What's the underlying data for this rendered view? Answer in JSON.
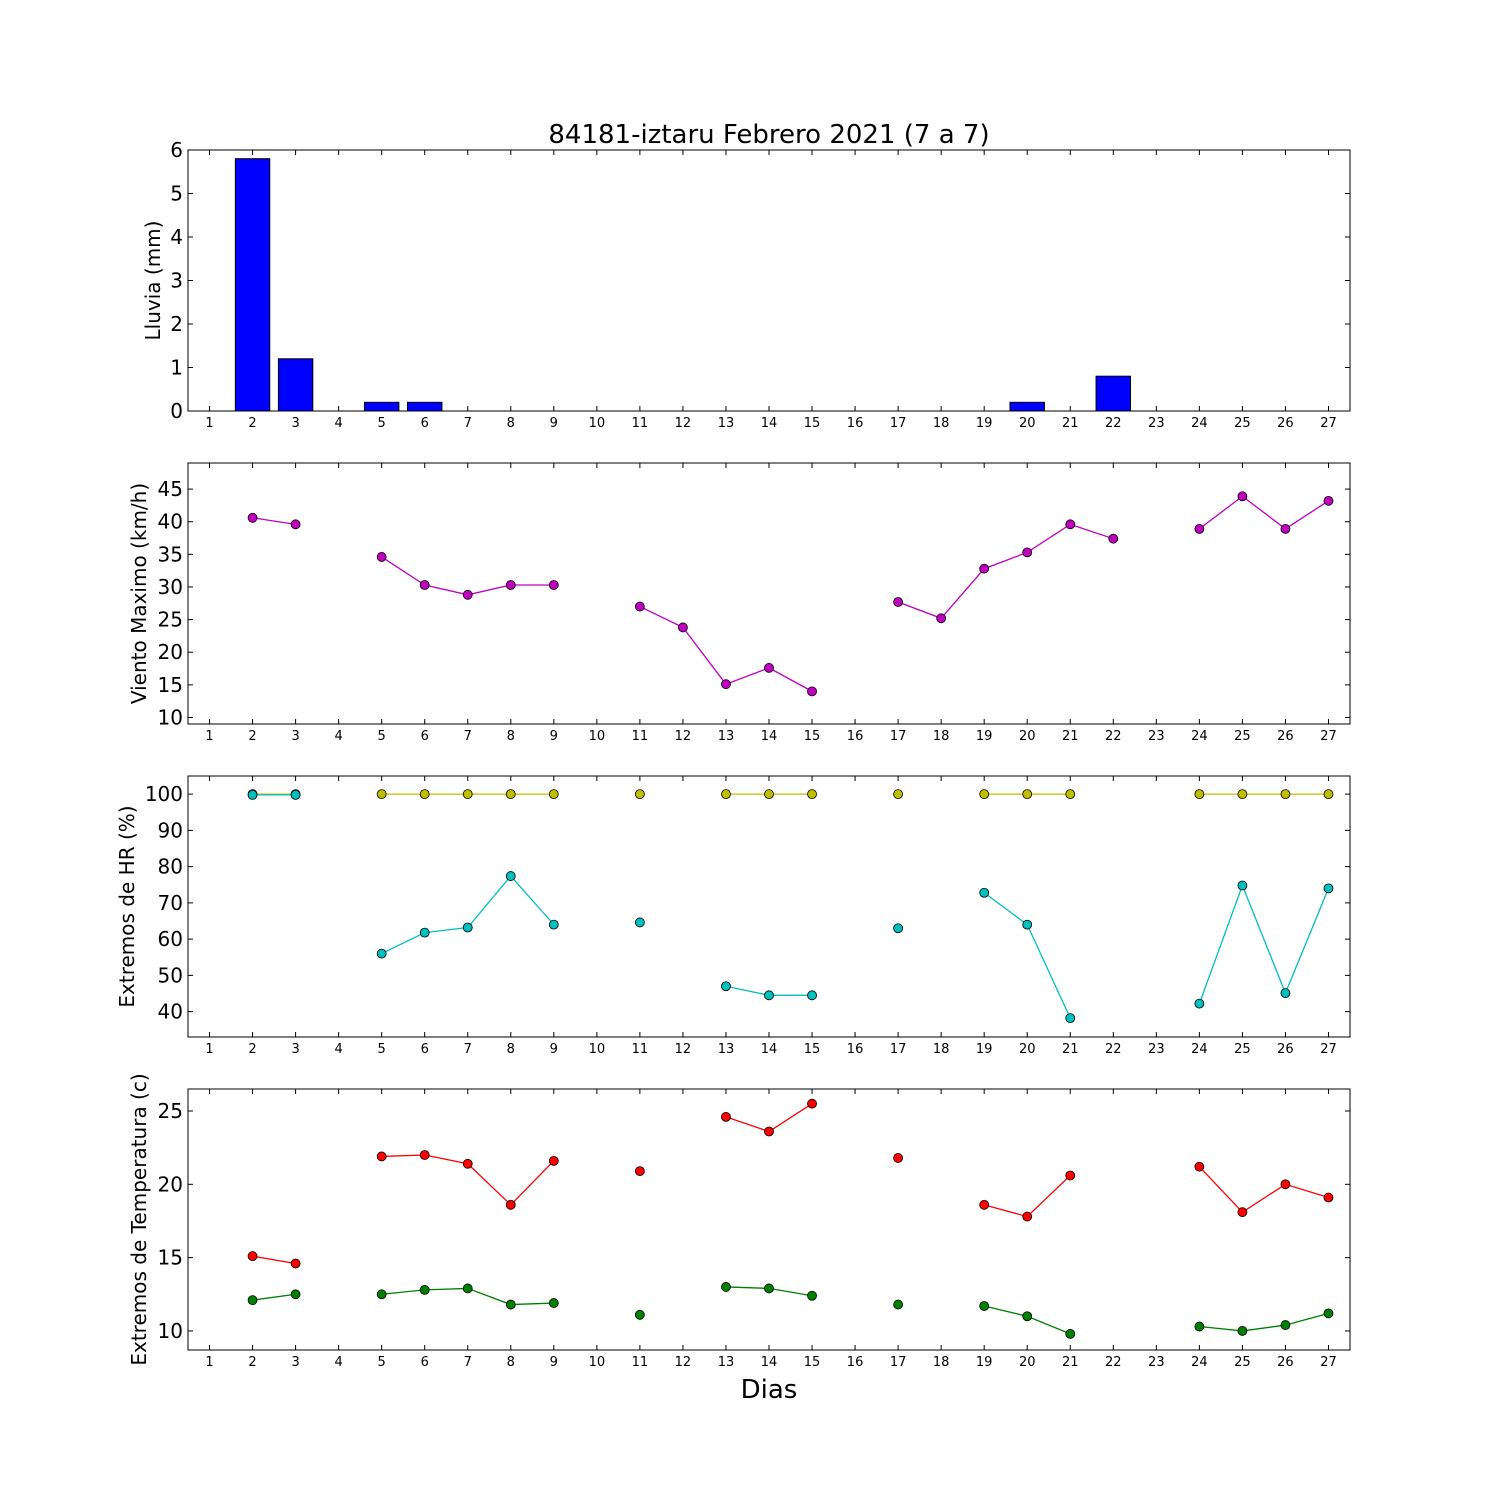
{
  "chart_data": {
    "title": "84181-iztaru Febrero 2021  (7 a 7)",
    "xlabel": "Dias",
    "days": [
      1,
      2,
      3,
      4,
      5,
      6,
      7,
      8,
      9,
      10,
      11,
      12,
      13,
      14,
      15,
      16,
      17,
      18,
      19,
      20,
      21,
      22,
      23,
      24,
      25,
      26,
      27
    ],
    "xtick_labels": [
      "1",
      "2",
      "3",
      "4",
      "5",
      "6",
      "7",
      "8",
      "9",
      "10",
      "11",
      "12",
      "13",
      "14",
      "15",
      "16",
      "17",
      "18",
      "19",
      "20",
      "21",
      "22",
      "23",
      "24",
      "25",
      "26",
      "27"
    ],
    "panels": [
      {
        "type": "bar",
        "ylabel": "Lluvia (mm)",
        "ylim": [
          0,
          6
        ],
        "yticks": [
          0,
          1,
          2,
          3,
          4,
          5,
          6
        ],
        "ytick_labels": [
          "0",
          "1",
          "2",
          "3",
          "4",
          "5",
          "6"
        ],
        "series": [
          {
            "color": "#0000ff",
            "values": [
              null,
              5.8,
              1.2,
              null,
              0.2,
              0.2,
              0,
              0,
              0,
              0,
              0,
              0,
              0,
              0,
              0,
              0,
              0,
              0,
              0,
              0.2,
              0,
              0.8,
              0,
              0,
              0,
              0,
              0
            ]
          }
        ]
      },
      {
        "type": "line",
        "ylabel": "Viento Maximo (km/h)",
        "ylim": [
          9,
          49
        ],
        "yticks": [
          10,
          15,
          20,
          25,
          30,
          35,
          40,
          45
        ],
        "ytick_labels": [
          "10",
          "15",
          "20",
          "25",
          "30",
          "35",
          "40",
          "45"
        ],
        "series": [
          {
            "color": "#bf00bf",
            "values": [
              null,
              40.6,
              39.6,
              null,
              34.6,
              30.3,
              28.8,
              30.3,
              30.3,
              null,
              27.0,
              23.8,
              15.1,
              17.6,
              14.0,
              null,
              27.7,
              25.2,
              32.8,
              35.3,
              39.6,
              37.4,
              null,
              38.9,
              43.9,
              38.9,
              43.2
            ]
          }
        ]
      },
      {
        "type": "line",
        "ylabel": "Extremos de HR (%)",
        "ylim": [
          33,
          105
        ],
        "yticks": [
          40,
          50,
          60,
          70,
          80,
          90,
          100
        ],
        "ytick_labels": [
          "40",
          "50",
          "60",
          "70",
          "80",
          "90",
          "100"
        ],
        "series": [
          {
            "color": "#bfbf00",
            "values": [
              null,
              100,
              100,
              null,
              100,
              100,
              100,
              100,
              100,
              null,
              100,
              null,
              100,
              100,
              100,
              null,
              100,
              null,
              100,
              100,
              100,
              null,
              null,
              100,
              100,
              100,
              100
            ]
          },
          {
            "color": "#00bfbf",
            "values": [
              null,
              99.8,
              99.8,
              null,
              56,
              61.8,
              63.2,
              77.4,
              64,
              null,
              64.6,
              null,
              47,
              44.5,
              44.5,
              null,
              63,
              null,
              72.8,
              64,
              38.2,
              null,
              null,
              42.2,
              74.8,
              45.1,
              74
            ]
          }
        ]
      },
      {
        "type": "line",
        "ylabel": "Extremos de Temperatura (c)",
        "ylim": [
          8.7,
          26.5
        ],
        "yticks": [
          10,
          15,
          20,
          25
        ],
        "ytick_labels": [
          "10",
          "15",
          "20",
          "25"
        ],
        "series": [
          {
            "color": "#ff0000",
            "values": [
              null,
              15.1,
              14.6,
              null,
              21.9,
              22.0,
              21.4,
              18.6,
              21.6,
              null,
              20.9,
              null,
              24.6,
              23.6,
              25.5,
              null,
              21.8,
              null,
              18.6,
              17.8,
              20.6,
              null,
              null,
              21.2,
              18.1,
              20.0,
              19.1
            ]
          },
          {
            "color": "#008000",
            "values": [
              null,
              12.1,
              12.5,
              null,
              12.5,
              12.8,
              12.9,
              11.8,
              11.9,
              null,
              11.1,
              null,
              13.0,
              12.9,
              12.4,
              null,
              11.8,
              null,
              11.7,
              11.0,
              9.8,
              null,
              null,
              10.3,
              10.0,
              10.4,
              11.2
            ]
          }
        ]
      }
    ]
  }
}
